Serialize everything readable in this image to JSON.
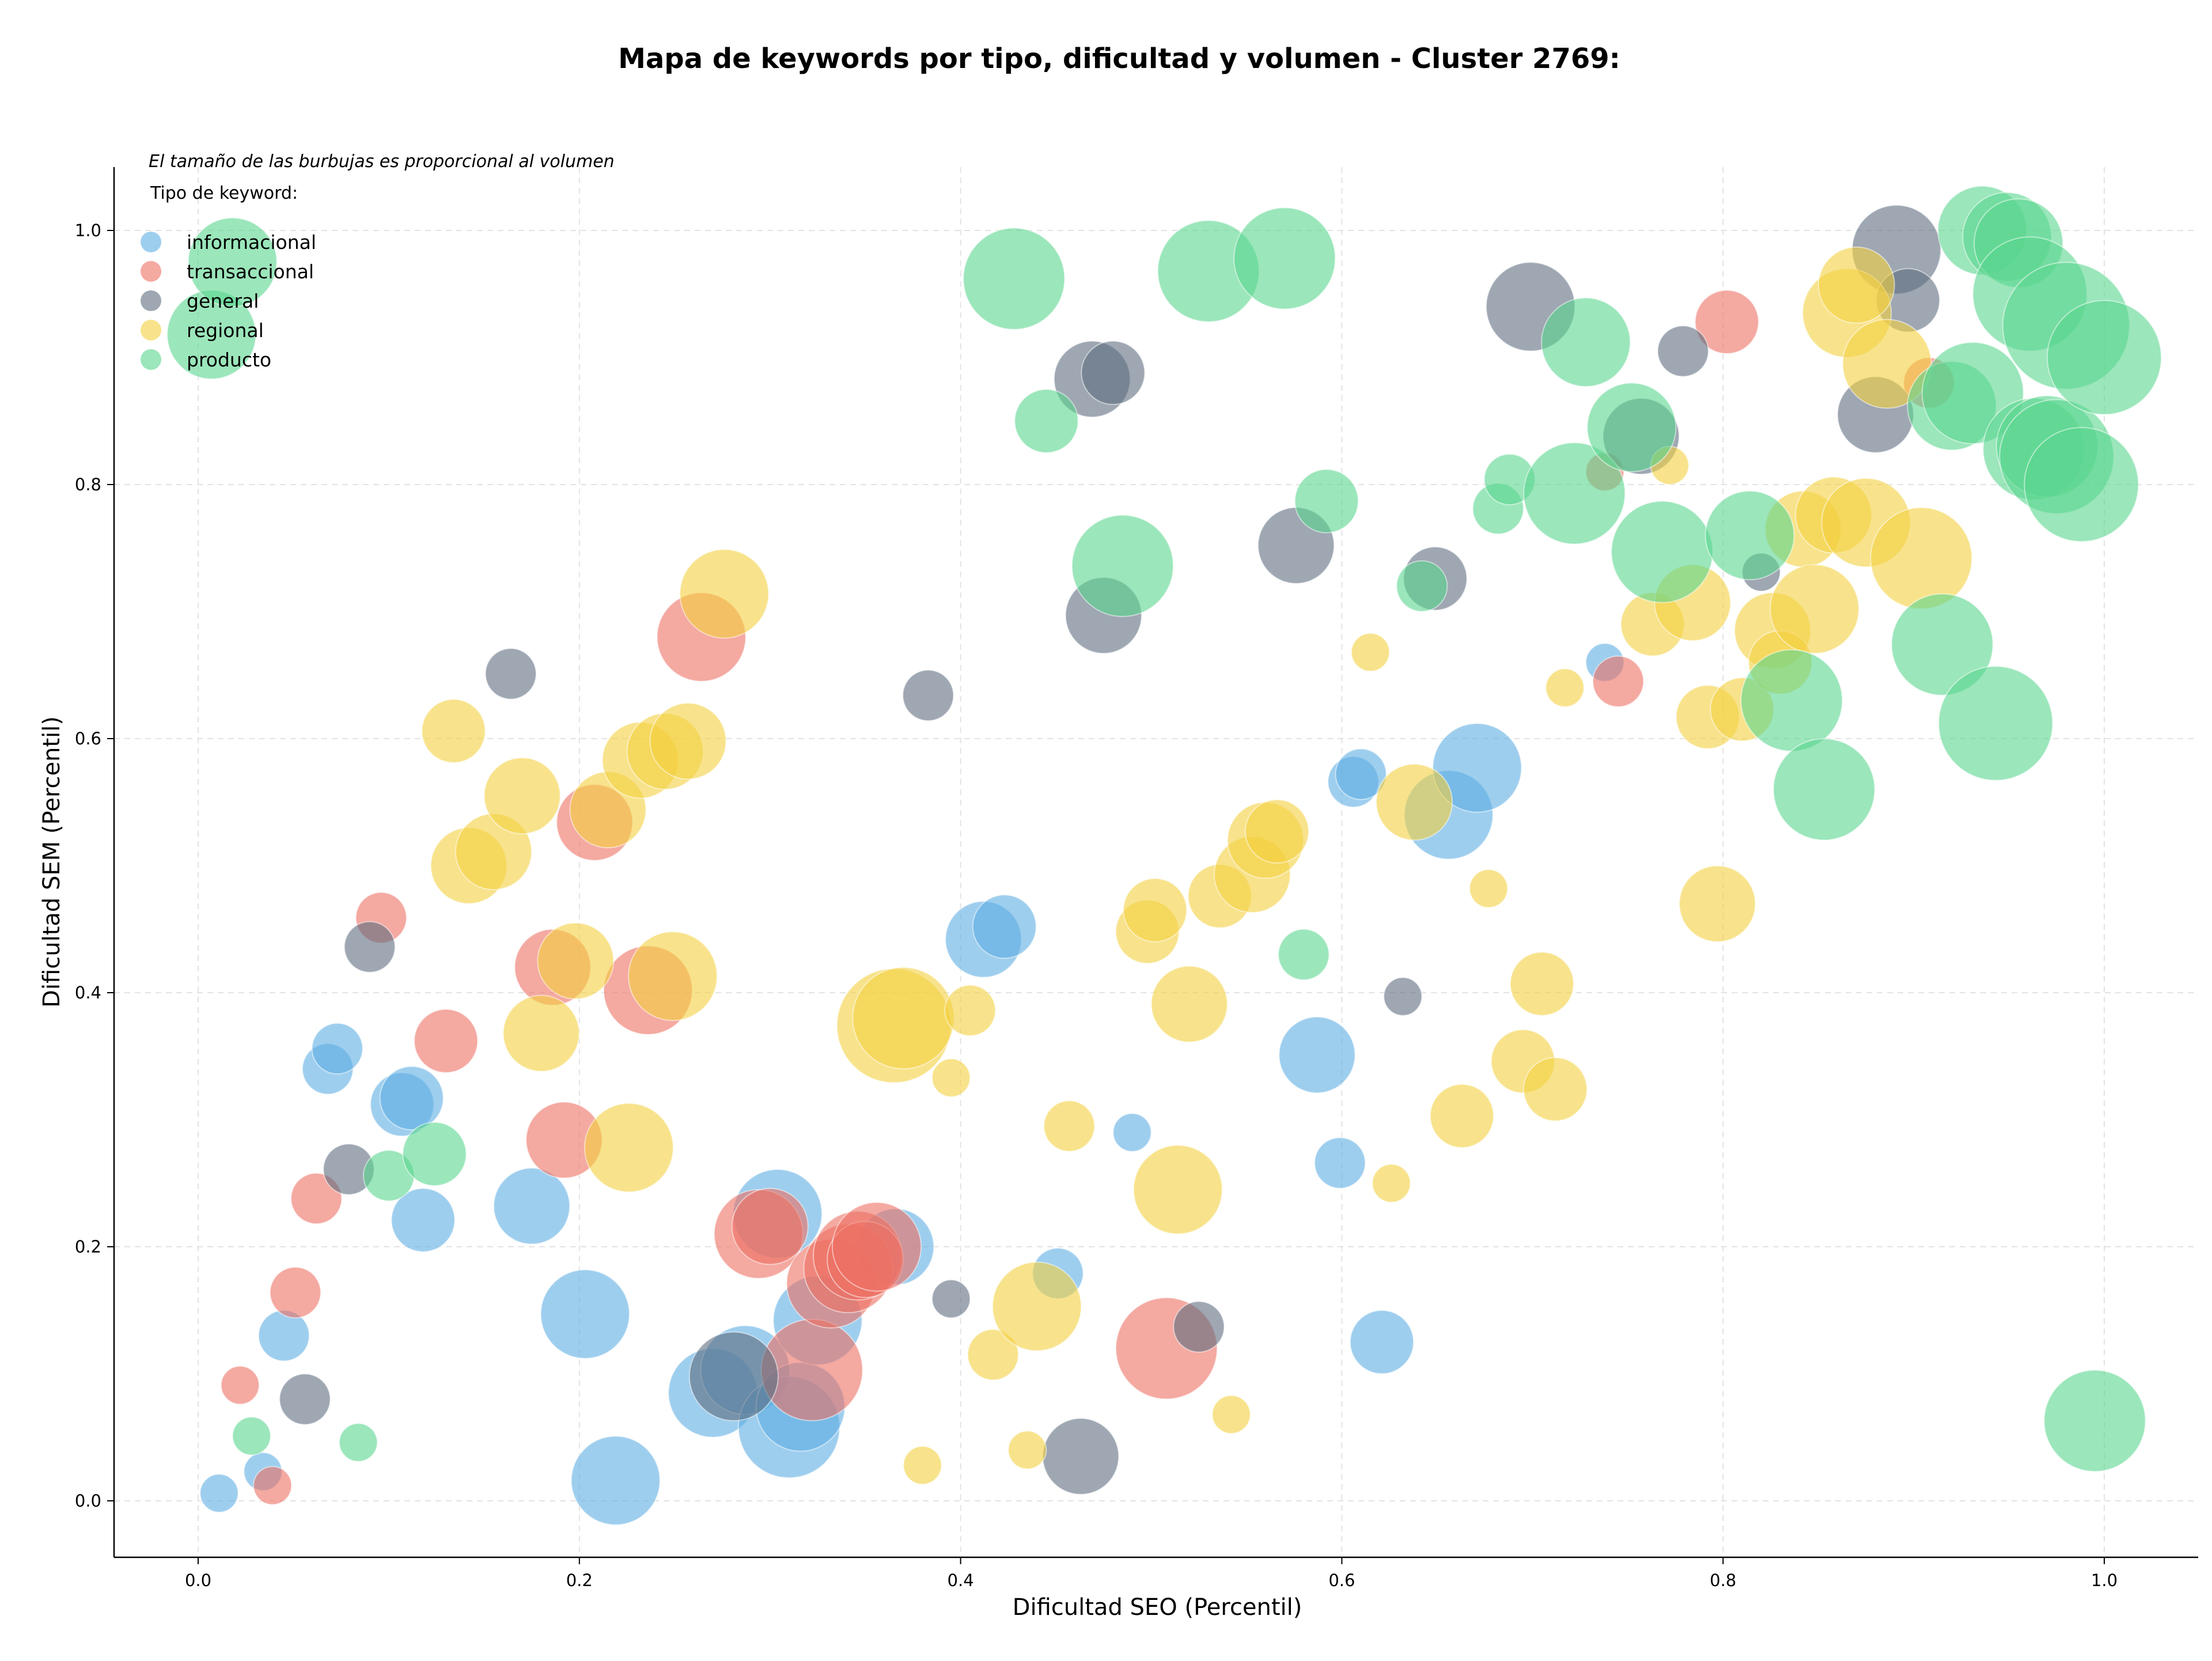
{
  "chart_data": {
    "type": "scatter",
    "title": "Mapa de keywords por tipo, dificultad y volumen - Cluster 2769:",
    "xlabel": "Dificultad SEO (Percentil)",
    "ylabel": "Dificultad SEM (Percentil)",
    "xlim": [
      -0.04,
      1.05
    ],
    "ylim": [
      -0.045,
      1.05
    ],
    "x_ticks": [
      "0.0",
      "0.2",
      "0.4",
      "0.6",
      "0.8",
      "1.0"
    ],
    "y_ticks": [
      "0.0",
      "0.2",
      "0.4",
      "0.6",
      "0.8",
      "1.0"
    ],
    "grid": true,
    "size_note": "El tamaño de las burbujas es proporcional al volumen",
    "legend_title": "Tipo de keyword:",
    "legend_placement": "top-left",
    "series": [
      {
        "name": "informacional",
        "color": "#5dade2",
        "points": [
          [
            0.011,
            0.006,
            3
          ],
          [
            0.034,
            0.023,
            3
          ],
          [
            0.045,
            0.13,
            4
          ],
          [
            0.068,
            0.34,
            4
          ],
          [
            0.073,
            0.356,
            4
          ],
          [
            0.107,
            0.312,
            5
          ],
          [
            0.112,
            0.317,
            5
          ],
          [
            0.118,
            0.221,
            5
          ],
          [
            0.175,
            0.232,
            6
          ],
          [
            0.203,
            0.147,
            7
          ],
          [
            0.219,
            0.016,
            7
          ],
          [
            0.27,
            0.085,
            7
          ],
          [
            0.287,
            0.103,
            7
          ],
          [
            0.304,
            0.226,
            7
          ],
          [
            0.31,
            0.058,
            8
          ],
          [
            0.316,
            0.074,
            7
          ],
          [
            0.325,
            0.142,
            7
          ],
          [
            0.366,
            0.2,
            6
          ],
          [
            0.412,
            0.442,
            6
          ],
          [
            0.423,
            0.452,
            5
          ],
          [
            0.451,
            0.179,
            4
          ],
          [
            0.49,
            0.29,
            3
          ],
          [
            0.587,
            0.351,
            6
          ],
          [
            0.599,
            0.266,
            4
          ],
          [
            0.606,
            0.566,
            4
          ],
          [
            0.61,
            0.572,
            4
          ],
          [
            0.621,
            0.125,
            5
          ],
          [
            0.656,
            0.54,
            7
          ],
          [
            0.671,
            0.577,
            7
          ],
          [
            0.738,
            0.66,
            3
          ]
        ]
      },
      {
        "name": "transaccional",
        "color": "#ec7063",
        "points": [
          [
            0.022,
            0.091,
            3
          ],
          [
            0.039,
            0.012,
            3
          ],
          [
            0.051,
            0.164,
            4
          ],
          [
            0.062,
            0.238,
            4
          ],
          [
            0.096,
            0.459,
            4
          ],
          [
            0.13,
            0.362,
            5
          ],
          [
            0.186,
            0.42,
            6
          ],
          [
            0.192,
            0.284,
            6
          ],
          [
            0.208,
            0.534,
            6
          ],
          [
            0.236,
            0.402,
            7
          ],
          [
            0.264,
            0.68,
            7
          ],
          [
            0.294,
            0.21,
            7
          ],
          [
            0.3,
            0.216,
            6
          ],
          [
            0.322,
            0.103,
            8
          ],
          [
            0.332,
            0.171,
            7
          ],
          [
            0.341,
            0.183,
            7
          ],
          [
            0.346,
            0.193,
            7
          ],
          [
            0.35,
            0.19,
            6
          ],
          [
            0.356,
            0.2,
            7
          ],
          [
            0.508,
            0.12,
            8
          ],
          [
            0.738,
            0.81,
            3
          ],
          [
            0.745,
            0.645,
            4
          ],
          [
            0.802,
            0.928,
            5
          ],
          [
            0.908,
            0.88,
            4
          ]
        ]
      },
      {
        "name": "general",
        "color": "#5d6d7e",
        "points": [
          [
            0.056,
            0.08,
            4
          ],
          [
            0.079,
            0.261,
            4
          ],
          [
            0.09,
            0.436,
            4
          ],
          [
            0.164,
            0.651,
            4
          ],
          [
            0.281,
            0.098,
            7
          ],
          [
            0.383,
            0.634,
            4
          ],
          [
            0.395,
            0.159,
            3
          ],
          [
            0.463,
            0.035,
            6
          ],
          [
            0.475,
            0.697,
            6
          ],
          [
            0.469,
            0.883,
            6
          ],
          [
            0.48,
            0.888,
            5
          ],
          [
            0.525,
            0.137,
            4
          ],
          [
            0.576,
            0.752,
            6
          ],
          [
            0.632,
            0.397,
            3
          ],
          [
            0.649,
            0.726,
            5
          ],
          [
            0.699,
            0.94,
            7
          ],
          [
            0.757,
            0.838,
            6
          ],
          [
            0.779,
            0.905,
            4
          ],
          [
            0.82,
            0.731,
            3
          ],
          [
            0.88,
            0.855,
            6
          ],
          [
            0.891,
            0.985,
            7
          ],
          [
            0.897,
            0.945,
            5
          ]
        ]
      },
      {
        "name": "regional",
        "color": "#f4d03f",
        "points": [
          [
            0.134,
            0.606,
            5
          ],
          [
            0.142,
            0.5,
            6
          ],
          [
            0.155,
            0.511,
            6
          ],
          [
            0.17,
            0.555,
            6
          ],
          [
            0.18,
            0.368,
            6
          ],
          [
            0.198,
            0.425,
            6
          ],
          [
            0.215,
            0.544,
            6
          ],
          [
            0.226,
            0.278,
            7
          ],
          [
            0.232,
            0.583,
            6
          ],
          [
            0.245,
            0.59,
            6
          ],
          [
            0.249,
            0.413,
            7
          ],
          [
            0.257,
            0.598,
            6
          ],
          [
            0.276,
            0.714,
            7
          ],
          [
            0.365,
            0.374,
            9
          ],
          [
            0.37,
            0.38,
            8
          ],
          [
            0.38,
            0.028,
            3
          ],
          [
            0.395,
            0.333,
            3
          ],
          [
            0.405,
            0.386,
            4
          ],
          [
            0.417,
            0.115,
            4
          ],
          [
            0.435,
            0.04,
            3
          ],
          [
            0.44,
            0.153,
            7
          ],
          [
            0.457,
            0.295,
            4
          ],
          [
            0.498,
            0.448,
            5
          ],
          [
            0.502,
            0.465,
            5
          ],
          [
            0.514,
            0.245,
            7
          ],
          [
            0.52,
            0.391,
            6
          ],
          [
            0.536,
            0.476,
            5
          ],
          [
            0.542,
            0.068,
            3
          ],
          [
            0.553,
            0.493,
            6
          ],
          [
            0.56,
            0.52,
            6
          ],
          [
            0.566,
            0.527,
            5
          ],
          [
            0.615,
            0.668,
            3
          ],
          [
            0.626,
            0.25,
            3
          ],
          [
            0.638,
            0.55,
            6
          ],
          [
            0.663,
            0.303,
            5
          ],
          [
            0.677,
            0.482,
            3
          ],
          [
            0.695,
            0.346,
            5
          ],
          [
            0.705,
            0.407,
            5
          ],
          [
            0.712,
            0.324,
            5
          ],
          [
            0.717,
            0.64,
            3
          ],
          [
            0.763,
            0.69,
            5
          ],
          [
            0.772,
            0.815,
            3
          ],
          [
            0.784,
            0.707,
            6
          ],
          [
            0.792,
            0.617,
            5
          ],
          [
            0.797,
            0.47,
            6
          ],
          [
            0.81,
            0.623,
            5
          ],
          [
            0.826,
            0.685,
            6
          ],
          [
            0.83,
            0.66,
            5
          ],
          [
            0.842,
            0.765,
            6
          ],
          [
            0.848,
            0.702,
            7
          ],
          [
            0.858,
            0.776,
            6
          ],
          [
            0.865,
            0.935,
            7
          ],
          [
            0.87,
            0.957,
            6
          ],
          [
            0.875,
            0.77,
            7
          ],
          [
            0.886,
            0.895,
            7
          ],
          [
            0.904,
            0.742,
            8
          ]
        ]
      },
      {
        "name": "producto",
        "color": "#58d68d",
        "points": [
          [
            0.007,
            0.918,
            7
          ],
          [
            0.018,
            0.975,
            7
          ],
          [
            0.028,
            0.051,
            3
          ],
          [
            0.084,
            0.046,
            3
          ],
          [
            0.1,
            0.256,
            4
          ],
          [
            0.124,
            0.273,
            5
          ],
          [
            0.428,
            0.962,
            8
          ],
          [
            0.445,
            0.85,
            5
          ],
          [
            0.485,
            0.736,
            8
          ],
          [
            0.53,
            0.968,
            8
          ],
          [
            0.57,
            0.978,
            8
          ],
          [
            0.58,
            0.43,
            4
          ],
          [
            0.592,
            0.787,
            5
          ],
          [
            0.642,
            0.72,
            4
          ],
          [
            0.682,
            0.781,
            4
          ],
          [
            0.688,
            0.804,
            4
          ],
          [
            0.722,
            0.793,
            8
          ],
          [
            0.728,
            0.912,
            7
          ],
          [
            0.752,
            0.845,
            7
          ],
          [
            0.768,
            0.747,
            8
          ],
          [
            0.814,
            0.76,
            7
          ],
          [
            0.836,
            0.63,
            8
          ],
          [
            0.853,
            0.56,
            8
          ],
          [
            0.915,
            0.674,
            8
          ],
          [
            0.92,
            0.862,
            7
          ],
          [
            0.931,
            0.872,
            8
          ],
          [
            0.936,
            1.0,
            7
          ],
          [
            0.943,
            0.612,
            9
          ],
          [
            0.949,
            0.995,
            7
          ],
          [
            0.955,
            0.99,
            7
          ],
          [
            0.961,
            0.95,
            9
          ],
          [
            0.963,
            0.828,
            8
          ],
          [
            0.97,
            0.83,
            8
          ],
          [
            0.975,
            0.822,
            9
          ],
          [
            0.98,
            0.925,
            10
          ],
          [
            0.988,
            0.8,
            9
          ],
          [
            0.995,
            0.063,
            8
          ],
          [
            1.0,
            0.9,
            9
          ]
        ]
      }
    ]
  }
}
